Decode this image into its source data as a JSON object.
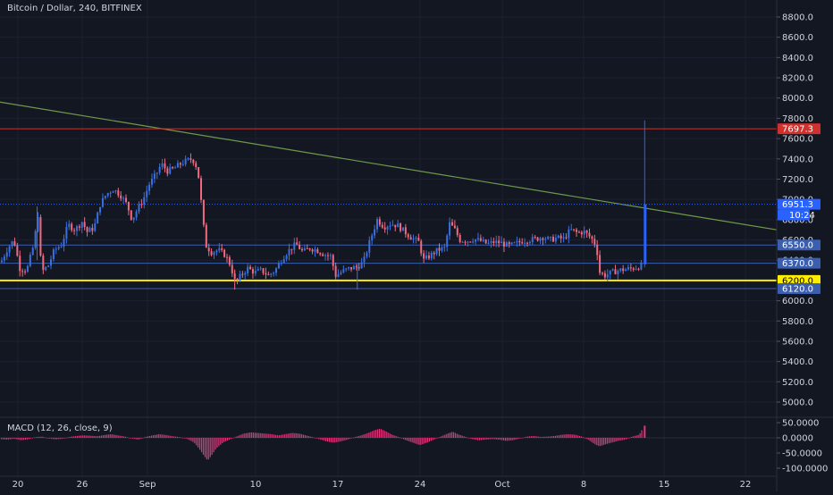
{
  "header": {
    "title": "Bitcoin / Dollar, 240, BITFINEX",
    "macd_label": "MACD (12, 26, close, 9)"
  },
  "colors": {
    "background": "#131722",
    "up": "#3a6fe0",
    "down": "#f06a80",
    "resistance": "#d0312d",
    "support": "#ffee00",
    "trendline": "#6f9a4d",
    "hline": "#3a5fb0",
    "current": "#2962ff",
    "macd_hist": "#e0357a",
    "grid": "#1c2030",
    "axis_text": "#d1d4dc"
  },
  "chart_data": [
    {
      "type": "line",
      "name": "price",
      "ylim": [
        5000,
        8900
      ],
      "xlim": [
        0,
        900
      ],
      "yticks": [
        5000,
        5200,
        5400,
        5600,
        5800,
        6000,
        6200,
        6400,
        6600,
        6800,
        7000,
        7200,
        7400,
        7600,
        7800,
        8000,
        8200,
        8400,
        8600,
        8800
      ],
      "ytick_labels": [
        "5000.0",
        "5200.0",
        "5400.0",
        "5600.0",
        "5800.0",
        "6000.0",
        "6200.0",
        "6400.0",
        "6600.0",
        "6800.0",
        "7000.0",
        "7200.0",
        "7400.0",
        "7600.0",
        "7800.0",
        "8000.0",
        "8200.0",
        "8400.0",
        "8600.0",
        "8800.0"
      ],
      "xticks": [
        20,
        92,
        165,
        286,
        378,
        470,
        562,
        653,
        743,
        834
      ],
      "xtick_labels": [
        "20",
        "26",
        "Sep",
        "10",
        "17",
        "24",
        "Oct",
        "8",
        "15",
        "22"
      ],
      "close_path": [
        [
          0,
          6380
        ],
        [
          8,
          6520
        ],
        [
          15,
          6600
        ],
        [
          22,
          6320
        ],
        [
          30,
          6300
        ],
        [
          38,
          6550
        ],
        [
          43,
          6850
        ],
        [
          47,
          6280
        ],
        [
          55,
          6350
        ],
        [
          62,
          6500
        ],
        [
          70,
          6550
        ],
        [
          78,
          6750
        ],
        [
          86,
          6700
        ],
        [
          94,
          6780
        ],
        [
          100,
          6680
        ],
        [
          108,
          6720
        ],
        [
          115,
          6950
        ],
        [
          122,
          7050
        ],
        [
          130,
          7100
        ],
        [
          138,
          7050
        ],
        [
          146,
          6950
        ],
        [
          152,
          6800
        ],
        [
          158,
          6900
        ],
        [
          165,
          7000
        ],
        [
          172,
          7150
        ],
        [
          180,
          7250
        ],
        [
          186,
          7350
        ],
        [
          193,
          7280
        ],
        [
          200,
          7300
        ],
        [
          208,
          7350
        ],
        [
          215,
          7380
        ],
        [
          222,
          7400
        ],
        [
          228,
          7300
        ],
        [
          233,
          6900
        ],
        [
          237,
          6550
        ],
        [
          244,
          6480
        ],
        [
          252,
          6500
        ],
        [
          260,
          6450
        ],
        [
          266,
          6350
        ],
        [
          272,
          6170
        ],
        [
          278,
          6250
        ],
        [
          286,
          6320
        ],
        [
          294,
          6280
        ],
        [
          302,
          6300
        ],
        [
          310,
          6250
        ],
        [
          318,
          6300
        ],
        [
          326,
          6420
        ],
        [
          334,
          6500
        ],
        [
          342,
          6560
        ],
        [
          350,
          6480
        ],
        [
          358,
          6520
        ],
        [
          366,
          6500
        ],
        [
          374,
          6460
        ],
        [
          382,
          6440
        ],
        [
          388,
          6250
        ],
        [
          396,
          6290
        ],
        [
          404,
          6320
        ],
        [
          412,
          6330
        ],
        [
          420,
          6380
        ],
        [
          428,
          6600
        ],
        [
          436,
          6800
        ],
        [
          444,
          6730
        ],
        [
          452,
          6760
        ],
        [
          460,
          6740
        ],
        [
          468,
          6680
        ],
        [
          476,
          6620
        ],
        [
          484,
          6580
        ],
        [
          490,
          6400
        ],
        [
          498,
          6450
        ],
        [
          506,
          6500
        ],
        [
          514,
          6520
        ],
        [
          520,
          6760
        ],
        [
          526,
          6700
        ],
        [
          532,
          6600
        ],
        [
          540,
          6590
        ],
        [
          548,
          6610
        ],
        [
          556,
          6590
        ],
        [
          564,
          6560
        ],
        [
          572,
          6580
        ],
        [
          580,
          6570
        ],
        [
          588,
          6540
        ],
        [
          596,
          6560
        ],
        [
          604,
          6590
        ],
        [
          612,
          6600
        ],
        [
          620,
          6610
        ],
        [
          628,
          6630
        ],
        [
          636,
          6600
        ],
        [
          644,
          6620
        ],
        [
          652,
          6610
        ],
        [
          660,
          6700
        ],
        [
          668,
          6670
        ],
        [
          676,
          6680
        ],
        [
          684,
          6620
        ],
        [
          690,
          6540
        ],
        [
          694,
          6280
        ],
        [
          700,
          6250
        ],
        [
          708,
          6280
        ],
        [
          716,
          6300
        ],
        [
          724,
          6310
        ],
        [
          732,
          6320
        ],
        [
          740,
          6340
        ],
        [
          744,
          6360
        ],
        [
          746,
          6951
        ]
      ],
      "hlines": [
        {
          "value": 7697.3,
          "label": "7697.3",
          "style": "resistance"
        },
        {
          "value": 6951.3,
          "label": "6951.3",
          "style": "current"
        },
        {
          "value": 6550.0,
          "label": "6550.0",
          "style": "hline"
        },
        {
          "value": 6370.0,
          "label": "6370.0",
          "style": "hline"
        },
        {
          "value": 6200.0,
          "label": "6200.0",
          "style": "support"
        },
        {
          "value": 6120.0,
          "label": "6120.0",
          "style": "hline"
        }
      ],
      "countdown": "10:24",
      "trendline": [
        [
          0,
          7960
        ],
        [
          900,
          6700
        ]
      ],
      "last_candle": {
        "x": 746,
        "open": 6360,
        "high": 7780,
        "low": 6330,
        "close": 6951
      }
    },
    {
      "type": "bar",
      "name": "MACD",
      "ylim": [
        -110,
        58
      ],
      "yticks": [
        50,
        0,
        -50,
        -100
      ],
      "ytick_labels": [
        "50.0000",
        "0.0000",
        "-50.0000",
        "-100.0000"
      ],
      "histogram": [
        [
          0,
          -4
        ],
        [
          8,
          -6
        ],
        [
          16,
          -3
        ],
        [
          24,
          -8
        ],
        [
          32,
          -5
        ],
        [
          40,
          2
        ],
        [
          48,
          4
        ],
        [
          56,
          -2
        ],
        [
          64,
          -5
        ],
        [
          72,
          -3
        ],
        [
          80,
          3
        ],
        [
          88,
          6
        ],
        [
          96,
          8
        ],
        [
          104,
          7
        ],
        [
          112,
          5
        ],
        [
          120,
          9
        ],
        [
          128,
          12
        ],
        [
          136,
          8
        ],
        [
          144,
          4
        ],
        [
          152,
          -2
        ],
        [
          160,
          -6
        ],
        [
          168,
          3
        ],
        [
          176,
          8
        ],
        [
          184,
          12
        ],
        [
          192,
          9
        ],
        [
          200,
          5
        ],
        [
          208,
          2
        ],
        [
          216,
          -3
        ],
        [
          224,
          -15
        ],
        [
          230,
          -35
        ],
        [
          236,
          -60
        ],
        [
          240,
          -75
        ],
        [
          244,
          -60
        ],
        [
          250,
          -35
        ],
        [
          258,
          -15
        ],
        [
          266,
          -5
        ],
        [
          274,
          5
        ],
        [
          282,
          14
        ],
        [
          290,
          18
        ],
        [
          298,
          16
        ],
        [
          306,
          14
        ],
        [
          314,
          12
        ],
        [
          322,
          8
        ],
        [
          330,
          12
        ],
        [
          338,
          16
        ],
        [
          346,
          14
        ],
        [
          354,
          8
        ],
        [
          362,
          2
        ],
        [
          370,
          -5
        ],
        [
          378,
          -12
        ],
        [
          386,
          -16
        ],
        [
          394,
          -12
        ],
        [
          402,
          -6
        ],
        [
          410,
          2
        ],
        [
          418,
          8
        ],
        [
          426,
          16
        ],
        [
          434,
          26
        ],
        [
          440,
          30
        ],
        [
          446,
          22
        ],
        [
          454,
          10
        ],
        [
          462,
          2
        ],
        [
          470,
          -8
        ],
        [
          478,
          -16
        ],
        [
          486,
          -24
        ],
        [
          494,
          -16
        ],
        [
          502,
          -6
        ],
        [
          510,
          4
        ],
        [
          518,
          14
        ],
        [
          524,
          20
        ],
        [
          530,
          12
        ],
        [
          538,
          4
        ],
        [
          546,
          -4
        ],
        [
          554,
          -8
        ],
        [
          562,
          -6
        ],
        [
          570,
          -4
        ],
        [
          578,
          -6
        ],
        [
          586,
          -10
        ],
        [
          594,
          -8
        ],
        [
          602,
          -2
        ],
        [
          610,
          4
        ],
        [
          618,
          6
        ],
        [
          626,
          3
        ],
        [
          634,
          4
        ],
        [
          642,
          6
        ],
        [
          650,
          10
        ],
        [
          658,
          12
        ],
        [
          666,
          10
        ],
        [
          674,
          4
        ],
        [
          682,
          -8
        ],
        [
          688,
          -20
        ],
        [
          694,
          -28
        ],
        [
          700,
          -22
        ],
        [
          708,
          -16
        ],
        [
          716,
          -10
        ],
        [
          724,
          -6
        ],
        [
          732,
          4
        ],
        [
          740,
          10
        ],
        [
          746,
          40
        ]
      ]
    }
  ]
}
